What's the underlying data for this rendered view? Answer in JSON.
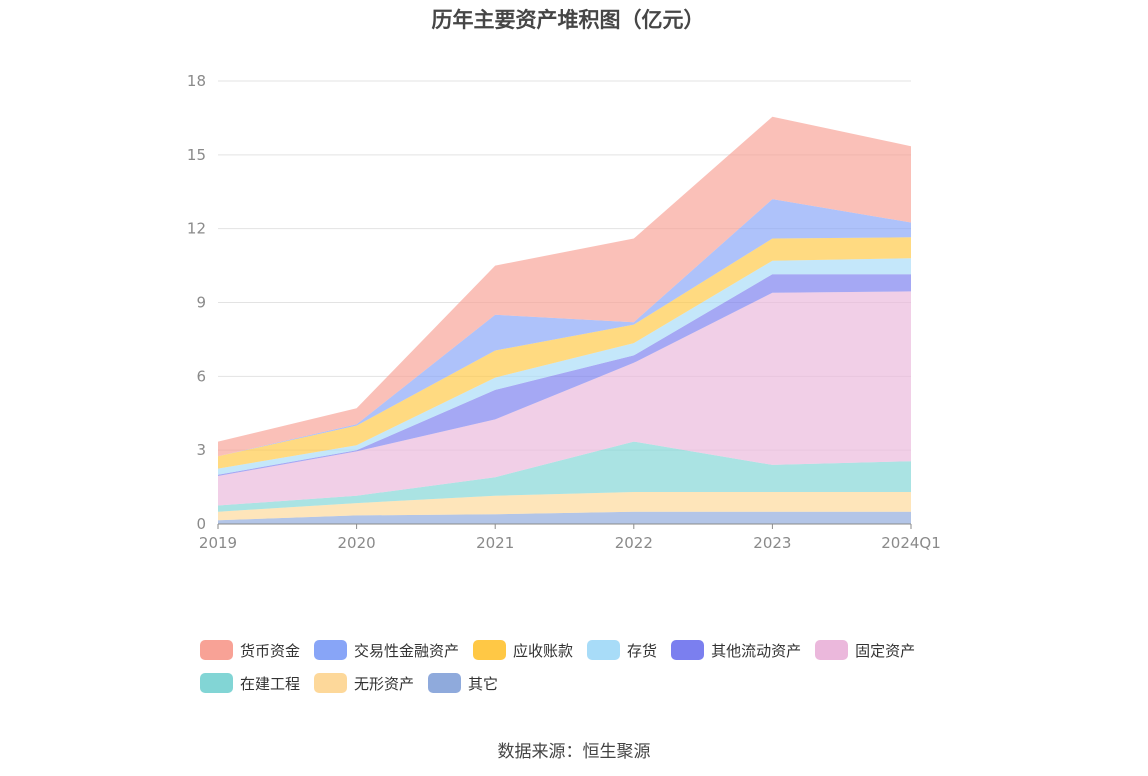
{
  "title": "历年主要资产堆积图（亿元）",
  "source": "数据来源：恒生聚源",
  "chart_data": {
    "type": "area",
    "stacked": true,
    "categories": [
      "2019",
      "2020",
      "2021",
      "2022",
      "2023",
      "2024Q1"
    ],
    "y_ticks": [
      "0",
      "3",
      "6",
      "9",
      "12",
      "15",
      "18"
    ],
    "ylim": [
      0,
      18
    ],
    "grid": true,
    "legend_position": "bottom",
    "series": [
      {
        "name": "其它",
        "color": "#8faadc",
        "values": [
          0.15,
          0.35,
          0.4,
          0.5,
          0.5,
          0.5
        ]
      },
      {
        "name": "无形资产",
        "color": "#fdd89a",
        "values": [
          0.35,
          0.5,
          0.75,
          0.8,
          0.8,
          0.8
        ]
      },
      {
        "name": "在建工程",
        "color": "#82d5d5",
        "values": [
          0.25,
          0.3,
          0.75,
          2.05,
          1.1,
          1.25
        ]
      },
      {
        "name": "固定资产",
        "color": "#ebb8dc",
        "values": [
          1.2,
          1.8,
          2.35,
          3.2,
          7.0,
          6.9
        ]
      },
      {
        "name": "其他流动资产",
        "color": "#7b7fef",
        "values": [
          0.05,
          0.05,
          1.2,
          0.3,
          0.75,
          0.7
        ]
      },
      {
        "name": "存货",
        "color": "#a8dcf8",
        "values": [
          0.25,
          0.2,
          0.5,
          0.5,
          0.55,
          0.65
        ]
      },
      {
        "name": "应收账款",
        "color": "#ffc845",
        "values": [
          0.5,
          0.8,
          1.1,
          0.75,
          0.9,
          0.85
        ]
      },
      {
        "name": "交易性金融资产",
        "color": "#88a5f7",
        "values": [
          0.0,
          0.05,
          1.45,
          0.1,
          1.6,
          0.6
        ]
      },
      {
        "name": "货币资金",
        "color": "#f8a296",
        "values": [
          0.6,
          0.65,
          2.0,
          3.4,
          3.35,
          3.1
        ]
      }
    ]
  },
  "legend_order": [
    "货币资金",
    "交易性金融资产",
    "应收账款",
    "存货",
    "其他流动资产",
    "固定资产",
    "在建工程",
    "无形资产",
    "其它"
  ]
}
